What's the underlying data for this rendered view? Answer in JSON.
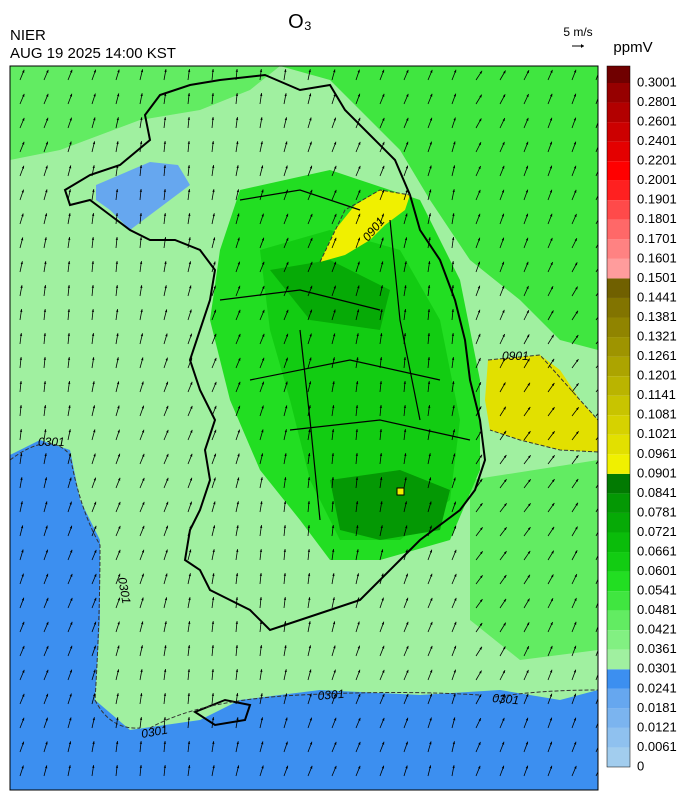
{
  "header": {
    "title": "O₃",
    "agency": "NIER",
    "datetime": "AUG 19 2025 14:00 KST",
    "wind_scale": "5 m/s"
  },
  "legend": {
    "unit": "ppmV",
    "levels": [
      0,
      0.0061,
      0.0121,
      0.0181,
      0.0241,
      0.0301,
      0.0361,
      0.0421,
      0.0481,
      0.0541,
      0.0601,
      0.0661,
      0.0721,
      0.0781,
      0.0841,
      0.0901,
      0.0961,
      0.1021,
      0.1081,
      0.1141,
      0.1201,
      0.1261,
      0.1321,
      0.1381,
      0.1441,
      0.1501,
      0.1601,
      0.1701,
      0.1801,
      0.1901,
      0.2001,
      0.2201,
      0.2401,
      0.2601,
      0.2801,
      0.3001
    ],
    "colors": [
      "#a2cdee",
      "#8fc1ef",
      "#7bb4ef",
      "#66a7ef",
      "#3c8ff0",
      "#a0f0a0",
      "#82f082",
      "#62ec62",
      "#40e640",
      "#22de22",
      "#12cc12",
      "#0abc0a",
      "#06aa06",
      "#049804",
      "#027a02",
      "#f0f000",
      "#e2e000",
      "#d6d200",
      "#c8c400",
      "#bab400",
      "#aca400",
      "#9e9400",
      "#908400",
      "#827400",
      "#706000",
      "#ff9c9c",
      "#ff8282",
      "#ff6868",
      "#ff4a4a",
      "#ff2020",
      "#ff0000",
      "#e40000",
      "#cc0000",
      "#b20000",
      "#960000",
      "#700000"
    ]
  },
  "map": {
    "contour_labels": [
      "0301",
      "0301",
      "0301",
      "0301",
      "0301",
      "0901",
      "0901"
    ]
  }
}
